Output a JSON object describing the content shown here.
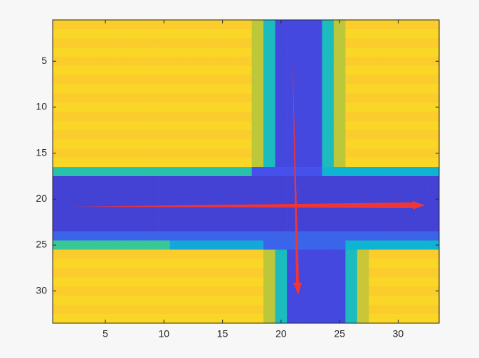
{
  "chart_data": {
    "type": "heatmap",
    "xlim": [
      0.5,
      33.5
    ],
    "ylim": [
      0.5,
      33.5
    ],
    "ydir": "reverse",
    "xticks": [
      5,
      10,
      15,
      20,
      25,
      30
    ],
    "yticks": [
      5,
      10,
      15,
      20,
      25,
      30
    ],
    "clim": [
      0,
      1
    ],
    "colormap": "parula",
    "z": [
      [
        0.9,
        0.9,
        0.9,
        0.9,
        0.9,
        0.9,
        0.9,
        0.9,
        0.9,
        0.9,
        0.9,
        0.9,
        0.9,
        0.9,
        0.9,
        0.9,
        0.9,
        0.78,
        0.5,
        0.12,
        0.12,
        0.12,
        0.12,
        0.5,
        0.78,
        0.9,
        0.9,
        0.9,
        0.9,
        0.9,
        0.9,
        0.9,
        0.9
      ],
      [
        0.92,
        0.92,
        0.92,
        0.92,
        0.92,
        0.92,
        0.92,
        0.92,
        0.92,
        0.92,
        0.92,
        0.92,
        0.92,
        0.92,
        0.92,
        0.92,
        0.92,
        0.78,
        0.5,
        0.12,
        0.12,
        0.12,
        0.12,
        0.5,
        0.78,
        0.92,
        0.92,
        0.92,
        0.92,
        0.92,
        0.92,
        0.92,
        0.92
      ],
      [
        0.9,
        0.9,
        0.9,
        0.9,
        0.9,
        0.9,
        0.9,
        0.9,
        0.9,
        0.9,
        0.9,
        0.9,
        0.9,
        0.9,
        0.9,
        0.9,
        0.9,
        0.78,
        0.5,
        0.12,
        0.12,
        0.12,
        0.12,
        0.5,
        0.78,
        0.9,
        0.9,
        0.9,
        0.9,
        0.9,
        0.9,
        0.9,
        0.9
      ],
      [
        0.92,
        0.92,
        0.92,
        0.92,
        0.92,
        0.92,
        0.92,
        0.92,
        0.92,
        0.92,
        0.92,
        0.92,
        0.92,
        0.92,
        0.92,
        0.92,
        0.92,
        0.78,
        0.5,
        0.12,
        0.12,
        0.12,
        0.12,
        0.5,
        0.78,
        0.92,
        0.92,
        0.92,
        0.92,
        0.92,
        0.92,
        0.92,
        0.92
      ],
      [
        0.9,
        0.9,
        0.9,
        0.9,
        0.9,
        0.9,
        0.9,
        0.9,
        0.9,
        0.9,
        0.9,
        0.9,
        0.9,
        0.9,
        0.9,
        0.9,
        0.9,
        0.78,
        0.5,
        0.12,
        0.12,
        0.12,
        0.12,
        0.5,
        0.78,
        0.9,
        0.9,
        0.9,
        0.9,
        0.9,
        0.9,
        0.9,
        0.9
      ],
      [
        0.92,
        0.92,
        0.92,
        0.92,
        0.92,
        0.92,
        0.92,
        0.92,
        0.92,
        0.92,
        0.92,
        0.92,
        0.92,
        0.92,
        0.92,
        0.92,
        0.92,
        0.78,
        0.5,
        0.12,
        0.12,
        0.12,
        0.12,
        0.5,
        0.78,
        0.92,
        0.92,
        0.92,
        0.92,
        0.92,
        0.92,
        0.92,
        0.92
      ],
      [
        0.9,
        0.9,
        0.9,
        0.9,
        0.9,
        0.9,
        0.9,
        0.9,
        0.9,
        0.9,
        0.9,
        0.9,
        0.9,
        0.9,
        0.9,
        0.9,
        0.9,
        0.78,
        0.5,
        0.12,
        0.12,
        0.12,
        0.12,
        0.5,
        0.78,
        0.9,
        0.9,
        0.9,
        0.9,
        0.9,
        0.9,
        0.9,
        0.9
      ],
      [
        0.92,
        0.92,
        0.92,
        0.92,
        0.92,
        0.92,
        0.92,
        0.92,
        0.92,
        0.92,
        0.92,
        0.92,
        0.92,
        0.92,
        0.92,
        0.92,
        0.92,
        0.78,
        0.5,
        0.12,
        0.12,
        0.12,
        0.12,
        0.5,
        0.78,
        0.92,
        0.92,
        0.92,
        0.92,
        0.92,
        0.92,
        0.92,
        0.92
      ],
      [
        0.9,
        0.9,
        0.9,
        0.9,
        0.9,
        0.9,
        0.9,
        0.9,
        0.9,
        0.9,
        0.9,
        0.9,
        0.9,
        0.9,
        0.9,
        0.9,
        0.9,
        0.78,
        0.5,
        0.12,
        0.12,
        0.12,
        0.12,
        0.5,
        0.78,
        0.9,
        0.9,
        0.9,
        0.9,
        0.9,
        0.9,
        0.9,
        0.9
      ],
      [
        0.92,
        0.92,
        0.92,
        0.92,
        0.92,
        0.92,
        0.92,
        0.92,
        0.92,
        0.92,
        0.92,
        0.92,
        0.92,
        0.92,
        0.92,
        0.92,
        0.92,
        0.78,
        0.5,
        0.12,
        0.12,
        0.12,
        0.12,
        0.5,
        0.78,
        0.92,
        0.92,
        0.92,
        0.92,
        0.92,
        0.92,
        0.92,
        0.92
      ],
      [
        0.9,
        0.9,
        0.9,
        0.9,
        0.9,
        0.9,
        0.9,
        0.9,
        0.9,
        0.9,
        0.9,
        0.9,
        0.9,
        0.9,
        0.9,
        0.9,
        0.9,
        0.78,
        0.5,
        0.12,
        0.12,
        0.12,
        0.12,
        0.5,
        0.78,
        0.9,
        0.9,
        0.9,
        0.9,
        0.9,
        0.9,
        0.9,
        0.9
      ],
      [
        0.92,
        0.92,
        0.92,
        0.92,
        0.92,
        0.92,
        0.92,
        0.92,
        0.92,
        0.92,
        0.92,
        0.92,
        0.92,
        0.92,
        0.92,
        0.92,
        0.92,
        0.78,
        0.5,
        0.12,
        0.12,
        0.12,
        0.12,
        0.5,
        0.78,
        0.92,
        0.92,
        0.92,
        0.92,
        0.92,
        0.92,
        0.92,
        0.92
      ],
      [
        0.9,
        0.9,
        0.9,
        0.9,
        0.9,
        0.9,
        0.9,
        0.9,
        0.9,
        0.9,
        0.9,
        0.9,
        0.9,
        0.9,
        0.9,
        0.9,
        0.9,
        0.78,
        0.5,
        0.12,
        0.12,
        0.12,
        0.12,
        0.5,
        0.78,
        0.9,
        0.9,
        0.9,
        0.9,
        0.9,
        0.9,
        0.9,
        0.9
      ],
      [
        0.92,
        0.92,
        0.92,
        0.92,
        0.92,
        0.92,
        0.92,
        0.92,
        0.92,
        0.92,
        0.92,
        0.92,
        0.92,
        0.92,
        0.92,
        0.92,
        0.92,
        0.78,
        0.5,
        0.12,
        0.12,
        0.12,
        0.12,
        0.5,
        0.78,
        0.92,
        0.92,
        0.92,
        0.92,
        0.92,
        0.92,
        0.92,
        0.92
      ],
      [
        0.9,
        0.9,
        0.9,
        0.9,
        0.9,
        0.9,
        0.9,
        0.9,
        0.9,
        0.9,
        0.9,
        0.9,
        0.9,
        0.9,
        0.9,
        0.9,
        0.9,
        0.78,
        0.5,
        0.12,
        0.12,
        0.12,
        0.12,
        0.5,
        0.78,
        0.9,
        0.9,
        0.9,
        0.9,
        0.9,
        0.9,
        0.9,
        0.9
      ],
      [
        0.92,
        0.92,
        0.92,
        0.92,
        0.92,
        0.92,
        0.92,
        0.92,
        0.92,
        0.92,
        0.92,
        0.92,
        0.92,
        0.92,
        0.92,
        0.92,
        0.92,
        0.78,
        0.5,
        0.12,
        0.12,
        0.12,
        0.12,
        0.5,
        0.78,
        0.92,
        0.92,
        0.92,
        0.92,
        0.92,
        0.92,
        0.92,
        0.92
      ],
      [
        0.55,
        0.55,
        0.55,
        0.55,
        0.55,
        0.55,
        0.55,
        0.55,
        0.55,
        0.55,
        0.55,
        0.55,
        0.55,
        0.55,
        0.55,
        0.55,
        0.55,
        0.15,
        0.15,
        0.15,
        0.15,
        0.15,
        0.15,
        0.45,
        0.45,
        0.45,
        0.45,
        0.45,
        0.45,
        0.45,
        0.45,
        0.45,
        0.45
      ],
      [
        0.1,
        0.1,
        0.1,
        0.1,
        0.1,
        0.1,
        0.1,
        0.1,
        0.1,
        0.1,
        0.1,
        0.1,
        0.1,
        0.1,
        0.1,
        0.1,
        0.1,
        0.1,
        0.1,
        0.1,
        0.1,
        0.1,
        0.1,
        0.1,
        0.1,
        0.1,
        0.1,
        0.1,
        0.1,
        0.1,
        0.1,
        0.1,
        0.1
      ],
      [
        0.1,
        0.1,
        0.1,
        0.1,
        0.1,
        0.1,
        0.1,
        0.1,
        0.1,
        0.1,
        0.1,
        0.1,
        0.1,
        0.1,
        0.1,
        0.1,
        0.1,
        0.1,
        0.1,
        0.1,
        0.1,
        0.1,
        0.1,
        0.1,
        0.1,
        0.1,
        0.1,
        0.1,
        0.1,
        0.1,
        0.1,
        0.1,
        0.1
      ],
      [
        0.1,
        0.1,
        0.1,
        0.1,
        0.1,
        0.1,
        0.1,
        0.1,
        0.1,
        0.1,
        0.1,
        0.1,
        0.1,
        0.1,
        0.1,
        0.1,
        0.1,
        0.1,
        0.1,
        0.1,
        0.1,
        0.1,
        0.1,
        0.1,
        0.1,
        0.1,
        0.1,
        0.1,
        0.1,
        0.1,
        0.1,
        0.1,
        0.1
      ],
      [
        0.1,
        0.1,
        0.1,
        0.1,
        0.1,
        0.1,
        0.1,
        0.1,
        0.1,
        0.1,
        0.1,
        0.1,
        0.1,
        0.1,
        0.1,
        0.1,
        0.1,
        0.1,
        0.1,
        0.1,
        0.1,
        0.1,
        0.1,
        0.1,
        0.1,
        0.1,
        0.1,
        0.1,
        0.1,
        0.1,
        0.1,
        0.1,
        0.1
      ],
      [
        0.1,
        0.1,
        0.1,
        0.1,
        0.1,
        0.1,
        0.1,
        0.1,
        0.1,
        0.1,
        0.1,
        0.1,
        0.1,
        0.1,
        0.1,
        0.1,
        0.1,
        0.1,
        0.1,
        0.1,
        0.1,
        0.1,
        0.1,
        0.1,
        0.1,
        0.1,
        0.1,
        0.1,
        0.1,
        0.1,
        0.1,
        0.1,
        0.1
      ],
      [
        0.1,
        0.1,
        0.1,
        0.1,
        0.1,
        0.1,
        0.1,
        0.1,
        0.1,
        0.1,
        0.1,
        0.1,
        0.1,
        0.1,
        0.1,
        0.1,
        0.1,
        0.1,
        0.1,
        0.1,
        0.1,
        0.1,
        0.1,
        0.1,
        0.1,
        0.1,
        0.1,
        0.1,
        0.1,
        0.1,
        0.1,
        0.1,
        0.1
      ],
      [
        0.2,
        0.2,
        0.2,
        0.2,
        0.2,
        0.2,
        0.2,
        0.2,
        0.2,
        0.2,
        0.2,
        0.2,
        0.2,
        0.2,
        0.2,
        0.2,
        0.2,
        0.2,
        0.2,
        0.2,
        0.2,
        0.2,
        0.2,
        0.2,
        0.2,
        0.2,
        0.2,
        0.2,
        0.2,
        0.2,
        0.2,
        0.2,
        0.2
      ],
      [
        0.6,
        0.6,
        0.6,
        0.6,
        0.6,
        0.6,
        0.6,
        0.6,
        0.6,
        0.6,
        0.4,
        0.4,
        0.4,
        0.4,
        0.4,
        0.4,
        0.4,
        0.4,
        0.2,
        0.2,
        0.2,
        0.2,
        0.2,
        0.2,
        0.2,
        0.45,
        0.45,
        0.45,
        0.45,
        0.45,
        0.45,
        0.45,
        0.45
      ],
      [
        0.9,
        0.9,
        0.9,
        0.9,
        0.9,
        0.9,
        0.9,
        0.9,
        0.9,
        0.9,
        0.9,
        0.9,
        0.9,
        0.9,
        0.9,
        0.9,
        0.9,
        0.9,
        0.78,
        0.5,
        0.12,
        0.12,
        0.12,
        0.12,
        0.12,
        0.5,
        0.8,
        0.9,
        0.9,
        0.9,
        0.9,
        0.9,
        0.9
      ],
      [
        0.92,
        0.92,
        0.92,
        0.92,
        0.92,
        0.92,
        0.92,
        0.92,
        0.92,
        0.92,
        0.92,
        0.92,
        0.92,
        0.92,
        0.92,
        0.92,
        0.92,
        0.92,
        0.78,
        0.5,
        0.12,
        0.12,
        0.12,
        0.12,
        0.12,
        0.5,
        0.8,
        0.92,
        0.92,
        0.92,
        0.92,
        0.92,
        0.92
      ],
      [
        0.9,
        0.9,
        0.9,
        0.9,
        0.9,
        0.9,
        0.9,
        0.9,
        0.9,
        0.9,
        0.9,
        0.9,
        0.9,
        0.9,
        0.9,
        0.9,
        0.9,
        0.9,
        0.78,
        0.5,
        0.12,
        0.12,
        0.12,
        0.12,
        0.12,
        0.5,
        0.8,
        0.9,
        0.9,
        0.9,
        0.9,
        0.9,
        0.9
      ],
      [
        0.92,
        0.92,
        0.92,
        0.92,
        0.92,
        0.92,
        0.92,
        0.92,
        0.92,
        0.92,
        0.92,
        0.92,
        0.92,
        0.92,
        0.92,
        0.92,
        0.92,
        0.92,
        0.78,
        0.5,
        0.12,
        0.12,
        0.12,
        0.12,
        0.12,
        0.5,
        0.8,
        0.92,
        0.92,
        0.92,
        0.92,
        0.92,
        0.92
      ],
      [
        0.9,
        0.9,
        0.9,
        0.9,
        0.9,
        0.9,
        0.9,
        0.9,
        0.9,
        0.9,
        0.9,
        0.9,
        0.9,
        0.9,
        0.9,
        0.9,
        0.9,
        0.9,
        0.78,
        0.5,
        0.12,
        0.12,
        0.12,
        0.12,
        0.12,
        0.5,
        0.8,
        0.9,
        0.9,
        0.9,
        0.9,
        0.9,
        0.9
      ],
      [
        0.92,
        0.92,
        0.92,
        0.92,
        0.92,
        0.92,
        0.92,
        0.92,
        0.92,
        0.92,
        0.92,
        0.92,
        0.92,
        0.92,
        0.92,
        0.92,
        0.92,
        0.92,
        0.78,
        0.5,
        0.12,
        0.12,
        0.12,
        0.12,
        0.12,
        0.5,
        0.8,
        0.92,
        0.92,
        0.92,
        0.92,
        0.92,
        0.92
      ],
      [
        0.9,
        0.9,
        0.9,
        0.9,
        0.9,
        0.9,
        0.9,
        0.9,
        0.9,
        0.9,
        0.9,
        0.9,
        0.9,
        0.9,
        0.9,
        0.9,
        0.9,
        0.9,
        0.78,
        0.5,
        0.12,
        0.12,
        0.12,
        0.12,
        0.12,
        0.5,
        0.8,
        0.9,
        0.9,
        0.9,
        0.9,
        0.9,
        0.9
      ],
      [
        0.92,
        0.92,
        0.92,
        0.92,
        0.92,
        0.92,
        0.92,
        0.92,
        0.92,
        0.92,
        0.92,
        0.92,
        0.92,
        0.92,
        0.92,
        0.92,
        0.92,
        0.92,
        0.78,
        0.5,
        0.12,
        0.12,
        0.12,
        0.12,
        0.12,
        0.5,
        0.8,
        0.92,
        0.92,
        0.92,
        0.92,
        0.92,
        0.92
      ]
    ]
  }
}
